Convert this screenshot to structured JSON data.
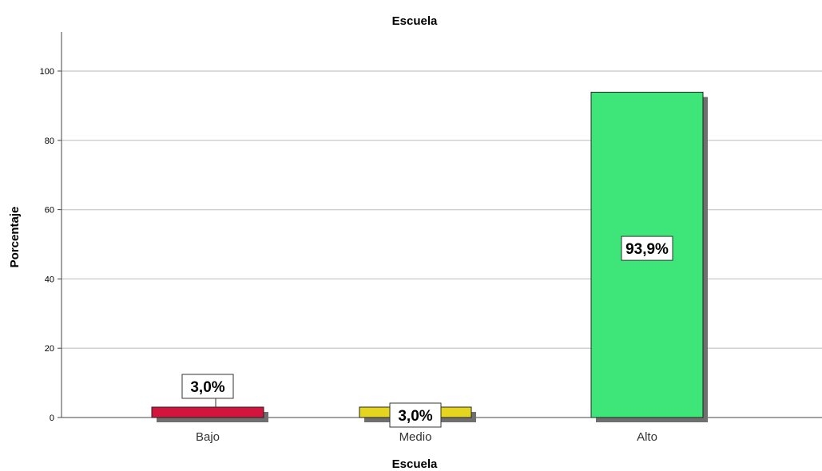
{
  "chart_data": {
    "type": "bar",
    "title": "Escuela",
    "xlabel": "Escuela",
    "ylabel": "Porcentaje",
    "categories": [
      "Bajo",
      "Medio",
      "Alto"
    ],
    "values": [
      3.0,
      3.0,
      93.9
    ],
    "data_labels": [
      "3,0%",
      "3,0%",
      "93,9%"
    ],
    "colors": [
      "#d3143c",
      "#e6d51e",
      "#3ee67a"
    ],
    "yticks": [
      0,
      20,
      40,
      60,
      80,
      100
    ],
    "ylim": [
      0,
      110
    ],
    "grid": true,
    "legend": "none"
  }
}
